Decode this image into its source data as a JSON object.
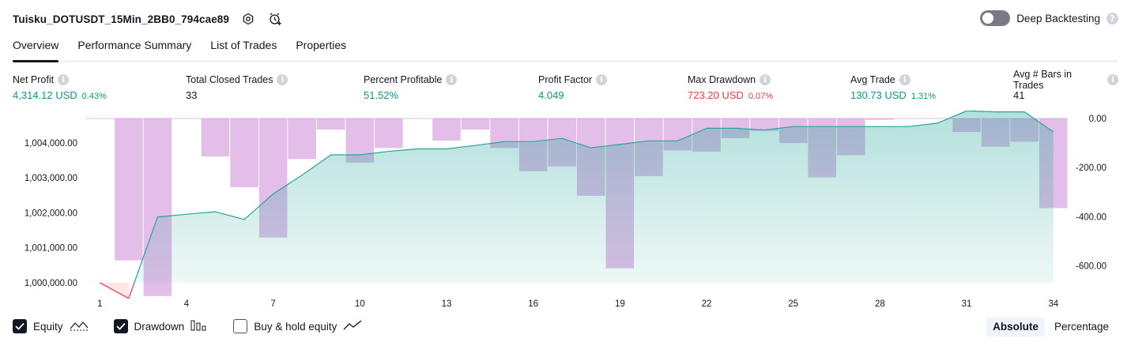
{
  "header": {
    "title": "Tuisku_DOTUSDT_15Min_2BB0_794cae89",
    "deep_backtesting_label": "Deep Backtesting"
  },
  "tabs": [
    {
      "label": "Overview",
      "active": true
    },
    {
      "label": "Performance Summary",
      "active": false
    },
    {
      "label": "List of Trades",
      "active": false
    },
    {
      "label": "Properties",
      "active": false
    }
  ],
  "metrics": {
    "net_profit": {
      "label": "Net Profit",
      "value": "4,314.12 USD",
      "sub": "0.43%"
    },
    "total_closed_trades": {
      "label": "Total Closed Trades",
      "value": "33"
    },
    "percent_profitable": {
      "label": "Percent Profitable",
      "value": "51.52%"
    },
    "profit_factor": {
      "label": "Profit Factor",
      "value": "4.049"
    },
    "max_drawdown": {
      "label": "Max Drawdown",
      "value": "723.20 USD",
      "sub": "0.07%"
    },
    "avg_trade": {
      "label": "Avg Trade",
      "value": "130.73 USD",
      "sub": "1.31%"
    },
    "avg_bars": {
      "label": "Avg # Bars in Trades",
      "value": "41"
    }
  },
  "legend": {
    "equity_label": "Equity",
    "drawdown_label": "Drawdown",
    "buy_hold_label": "Buy & hold equity",
    "equity_checked": true,
    "drawdown_checked": true,
    "buy_hold_checked": false
  },
  "mode": {
    "absolute_label": "Absolute",
    "percentage_label": "Percentage",
    "selected": "Absolute"
  },
  "colors": {
    "equity_line": "#26a69a",
    "equity_fill_top": "#b2dfdb",
    "negative_line": "#f23645",
    "drawdown_bar": "#ce93d8",
    "positive": "#089981",
    "negative": "#f23645"
  },
  "chart_data": {
    "type": "area",
    "x": [
      1,
      2,
      3,
      4,
      5,
      6,
      7,
      8,
      9,
      10,
      11,
      12,
      13,
      14,
      15,
      16,
      17,
      18,
      19,
      20,
      21,
      22,
      23,
      24,
      25,
      26,
      27,
      28,
      29,
      30,
      31,
      32,
      33,
      34
    ],
    "x_ticks": [
      "1",
      "4",
      "7",
      "10",
      "13",
      "16",
      "19",
      "22",
      "25",
      "28",
      "31",
      "34"
    ],
    "y_left_ticks": [
      "1,000,000.00",
      "1,001,000.00",
      "1,002,000.00",
      "1,003,000.00",
      "1,004,000.00"
    ],
    "y_left_tick_values": [
      1000000,
      1001000,
      1002000,
      1003000,
      1004000
    ],
    "y_left_range": [
      999500,
      1004700
    ],
    "y_right_ticks": [
      "0.00",
      "-200.00",
      "-400.00",
      "-600.00"
    ],
    "y_right_tick_values": [
      0,
      -200,
      -400,
      -600
    ],
    "y_right_range": [
      -740,
      0
    ],
    "series": [
      {
        "key": "equity",
        "values": [
          1000000,
          999550,
          1001880,
          1001960,
          1002030,
          1001810,
          1002540,
          1003080,
          1003660,
          1003660,
          1003760,
          1003830,
          1003830,
          1003930,
          1004040,
          1004040,
          1004130,
          1003860,
          1003960,
          1004060,
          1004060,
          1004420,
          1004420,
          1004370,
          1004470,
          1004470,
          1004470,
          1004470,
          1004470,
          1004570,
          1004920,
          1004890,
          1004890,
          1004320
        ]
      },
      {
        "key": "drawdown",
        "values": [
          0,
          -578,
          -723,
          0,
          -155,
          -280,
          -485,
          -165,
          -45,
          -180,
          -120,
          0,
          -90,
          -45,
          -120,
          -215,
          -195,
          -315,
          -610,
          -235,
          -130,
          -135,
          -80,
          -50,
          -100,
          -240,
          -150,
          -5,
          0,
          0,
          -55,
          -115,
          -95,
          -365
        ]
      }
    ]
  }
}
